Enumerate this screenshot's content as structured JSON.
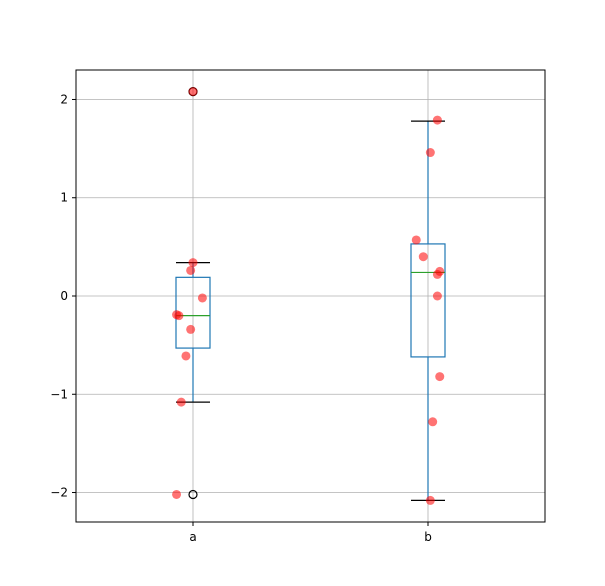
{
  "chart_data": {
    "type": "box",
    "title": "",
    "xlabel": "",
    "ylabel": "",
    "categories": [
      "a",
      "b"
    ],
    "ylim": [
      -2.3,
      2.3
    ],
    "yticks": [
      -2,
      -1,
      0,
      1,
      2
    ],
    "ytick_labels": [
      "−2",
      "−1",
      "0",
      "1",
      "2"
    ],
    "grid": true,
    "boxes": [
      {
        "name": "a",
        "q1": -0.53,
        "median": -0.2,
        "q3": 0.19,
        "whisker_low": -1.08,
        "whisker_high": 0.34,
        "fliers": [
          2.08,
          -2.02
        ]
      },
      {
        "name": "b",
        "q1": -0.62,
        "median": 0.24,
        "q3": 0.53,
        "whisker_low": -2.08,
        "whisker_high": 1.78,
        "fliers": []
      }
    ],
    "jitter_points": [
      {
        "category": "a",
        "x": 1.0,
        "y": 2.08
      },
      {
        "category": "a",
        "x": 1.0,
        "y": 0.34
      },
      {
        "category": "a",
        "x": 0.99,
        "y": 0.26
      },
      {
        "category": "a",
        "x": 1.04,
        "y": -0.02
      },
      {
        "category": "a",
        "x": 0.93,
        "y": -0.19
      },
      {
        "category": "a",
        "x": 0.94,
        "y": -0.2
      },
      {
        "category": "a",
        "x": 0.99,
        "y": -0.34
      },
      {
        "category": "a",
        "x": 0.97,
        "y": -0.61
      },
      {
        "category": "a",
        "x": 0.95,
        "y": -1.08
      },
      {
        "category": "a",
        "x": 0.93,
        "y": -2.02
      },
      {
        "category": "b",
        "x": 2.04,
        "y": 1.79
      },
      {
        "category": "b",
        "x": 2.01,
        "y": 1.46
      },
      {
        "category": "b",
        "x": 1.95,
        "y": 0.57
      },
      {
        "category": "b",
        "x": 1.98,
        "y": 0.4
      },
      {
        "category": "b",
        "x": 2.05,
        "y": 0.25
      },
      {
        "category": "b",
        "x": 2.04,
        "y": 0.22
      },
      {
        "category": "b",
        "x": 2.04,
        "y": 0.0
      },
      {
        "category": "b",
        "x": 2.05,
        "y": -0.82
      },
      {
        "category": "b",
        "x": 2.02,
        "y": -1.28
      },
      {
        "category": "b",
        "x": 2.01,
        "y": -2.08
      }
    ],
    "colors": {
      "box": "#1f77b4",
      "median": "#2ca02c",
      "whisker_cap": "#000000",
      "points": "#ff0000",
      "grid": "#b0b0b0",
      "axes": "#000000"
    }
  }
}
